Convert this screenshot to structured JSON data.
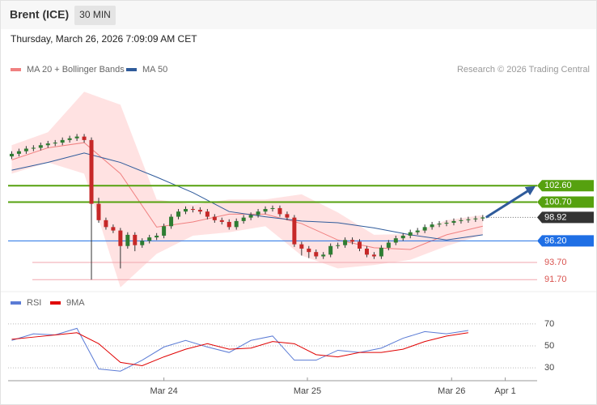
{
  "header": {
    "symbol": "Brent (ICE)",
    "interval": "30 MIN",
    "datetime": "Thursday, March 26, 2026 7:09:09 AM CET",
    "copyright": "Research © 2026 Trading Central"
  },
  "chart_data": [
    {
      "type": "candlestick",
      "up_color": "#2e7d32",
      "down_color": "#c62828",
      "open": [
        106.0,
        106.3,
        106.6,
        106.9,
        107.0,
        107.3,
        107.5,
        107.6,
        107.9,
        108.1,
        108.3,
        107.9,
        100.5,
        98.6,
        97.8,
        97.4,
        95.6,
        96.9,
        95.7,
        96.2,
        96.6,
        96.8,
        97.9,
        99.0,
        99.6,
        99.9,
        99.8,
        99.6,
        99.0,
        98.6,
        98.4,
        97.8,
        98.5,
        98.9,
        99.2,
        99.6,
        99.9,
        100.0,
        99.3,
        98.9,
        95.8,
        95.3,
        94.9,
        94.4,
        94.6,
        95.6,
        95.7,
        96.3,
        96.1,
        95.3,
        94.6,
        94.4,
        95.4,
        96.0,
        96.5,
        96.8,
        97.2,
        97.4,
        97.8,
        98.1,
        98.2,
        98.3,
        98.5,
        98.6,
        98.7,
        98.8
      ],
      "high": [
        106.6,
        106.9,
        107.2,
        107.3,
        107.6,
        107.8,
        107.9,
        108.2,
        108.4,
        108.6,
        108.6,
        108.2,
        101.2,
        98.9,
        98.1,
        97.7,
        97.2,
        97.2,
        96.5,
        96.9,
        97.1,
        98.2,
        99.3,
        99.9,
        100.2,
        100.2,
        100.1,
        99.9,
        99.3,
        98.9,
        98.7,
        98.8,
        99.2,
        99.5,
        99.9,
        100.2,
        100.3,
        100.3,
        99.6,
        99.2,
        96.1,
        95.6,
        95.2,
        94.9,
        95.9,
        96.0,
        96.6,
        96.6,
        96.4,
        95.6,
        94.9,
        95.7,
        96.3,
        96.8,
        97.1,
        97.5,
        97.7,
        98.1,
        98.4,
        98.5,
        98.6,
        98.8,
        98.9,
        99.0,
        99.1,
        99.2
      ],
      "low": [
        105.7,
        106.0,
        106.3,
        106.6,
        106.7,
        107.0,
        107.2,
        107.3,
        107.6,
        107.8,
        107.6,
        91.7,
        98.3,
        97.5,
        97.1,
        93.0,
        95.3,
        95.0,
        95.4,
        95.9,
        96.3,
        96.5,
        97.6,
        98.7,
        99.3,
        99.5,
        99.3,
        98.7,
        98.3,
        98.1,
        97.5,
        97.5,
        98.2,
        98.6,
        98.9,
        99.3,
        99.6,
        99.0,
        98.6,
        95.5,
        94.5,
        94.2,
        94.1,
        94.1,
        94.3,
        95.3,
        95.4,
        95.8,
        95.0,
        94.3,
        94.1,
        94.1,
        95.1,
        95.7,
        96.2,
        96.5,
        96.9,
        97.1,
        97.5,
        97.8,
        97.9,
        98.0,
        98.2,
        98.3,
        98.4,
        98.5
      ],
      "close": [
        106.3,
        106.6,
        106.9,
        107.0,
        107.3,
        107.5,
        107.6,
        107.9,
        108.1,
        108.3,
        107.9,
        100.5,
        98.6,
        97.8,
        97.4,
        95.6,
        96.9,
        95.7,
        96.2,
        96.6,
        96.8,
        97.9,
        99.0,
        99.6,
        99.9,
        99.8,
        99.6,
        99.0,
        98.6,
        98.4,
        97.8,
        98.5,
        98.9,
        99.2,
        99.6,
        99.9,
        100.0,
        99.3,
        98.9,
        95.8,
        95.3,
        94.9,
        94.4,
        94.6,
        95.6,
        95.7,
        96.3,
        96.1,
        95.3,
        94.6,
        94.4,
        95.4,
        96.0,
        96.5,
        96.8,
        97.2,
        97.4,
        97.8,
        98.1,
        98.2,
        98.3,
        98.5,
        98.6,
        98.7,
        98.8,
        98.92
      ],
      "overlays": [
        {
          "name": "MA 20 + Bollinger Bands",
          "color": "#f08080",
          "band_color": "#ffd6d6",
          "x": [
            0,
            5,
            10,
            15,
            20,
            25,
            30,
            35,
            40,
            45,
            50,
            55,
            60,
            65
          ],
          "values": [
            105.6,
            107.0,
            107.6,
            104.0,
            97.8,
            98.4,
            99.3,
            99.3,
            98.2,
            96.3,
            95.4,
            95.2,
            96.9,
            97.9
          ],
          "upper": [
            107.3,
            108.8,
            113.5,
            112.0,
            101.0,
            100.4,
            101.0,
            101.0,
            101.6,
            99.5,
            96.9,
            97.0,
            98.6,
            99.2
          ],
          "lower": [
            104.0,
            105.3,
            104.0,
            90.8,
            94.7,
            96.8,
            97.2,
            97.9,
            94.5,
            93.0,
            93.4,
            94.0,
            95.6,
            96.9
          ]
        },
        {
          "name": "MA 50",
          "color": "#2f5b9b",
          "x": [
            0,
            5,
            10,
            15,
            20,
            25,
            30,
            35,
            40,
            45,
            50,
            55,
            60,
            65
          ],
          "values": [
            104.4,
            105.3,
            106.4,
            105.3,
            103.6,
            101.8,
            99.6,
            99.0,
            98.5,
            98.3,
            97.7,
            96.9,
            96.3,
            96.9
          ]
        }
      ],
      "levels": [
        {
          "value": 102.6,
          "label": "102.60",
          "color": "#56a10f",
          "style": "box"
        },
        {
          "value": 100.7,
          "label": "100.70",
          "color": "#56a10f",
          "style": "box"
        },
        {
          "value": 98.92,
          "label": 98.92,
          "color": "#333333",
          "style": "current"
        },
        {
          "value": 96.2,
          "label": "96.20",
          "color": "#1f6fe5",
          "style": "box"
        },
        {
          "value": 93.7,
          "label": "93.70",
          "color": "#f2a5ad",
          "style": "text"
        },
        {
          "value": 91.7,
          "label": "91.70",
          "color": "#f2a5ad",
          "style": "text"
        }
      ],
      "xlim": [
        -0.5,
        72.5
      ],
      "ylim": [
        90.5,
        114.75
      ]
    },
    {
      "type": "line",
      "series": [
        {
          "name": "RSI",
          "color": "#5b7bd5",
          "x": [
            0,
            3,
            6,
            9,
            12,
            15,
            18,
            21,
            24,
            27,
            30,
            33,
            36,
            39,
            42,
            45,
            48,
            51,
            54,
            57,
            60,
            63
          ],
          "values": [
            55,
            61,
            60,
            66,
            29,
            27,
            37,
            49,
            55,
            49,
            44,
            55,
            59,
            37,
            37,
            46,
            44,
            48,
            57,
            63,
            61,
            64
          ]
        },
        {
          "name": "9MA",
          "color": "#e00000",
          "x": [
            0,
            3,
            6,
            9,
            12,
            15,
            18,
            21,
            24,
            27,
            30,
            33,
            36,
            39,
            42,
            45,
            48,
            51,
            54,
            57,
            60,
            63
          ],
          "values": [
            56,
            58,
            60,
            62,
            52,
            35,
            32,
            40,
            47,
            52,
            47,
            48,
            54,
            52,
            42,
            40,
            44,
            44,
            47,
            54,
            59,
            62
          ]
        }
      ],
      "xlim": [
        -0.5,
        72.5
      ],
      "ylim": [
        22,
        81
      ],
      "yticks": [
        70,
        50,
        30
      ],
      "xticks": [
        {
          "value": 21,
          "label": "Mar 24"
        },
        {
          "value": 40.8,
          "label": "Mar 25"
        },
        {
          "value": 60.7,
          "label": "Mar 26"
        },
        {
          "value": 68.1,
          "label": "Apr 1"
        }
      ]
    }
  ]
}
